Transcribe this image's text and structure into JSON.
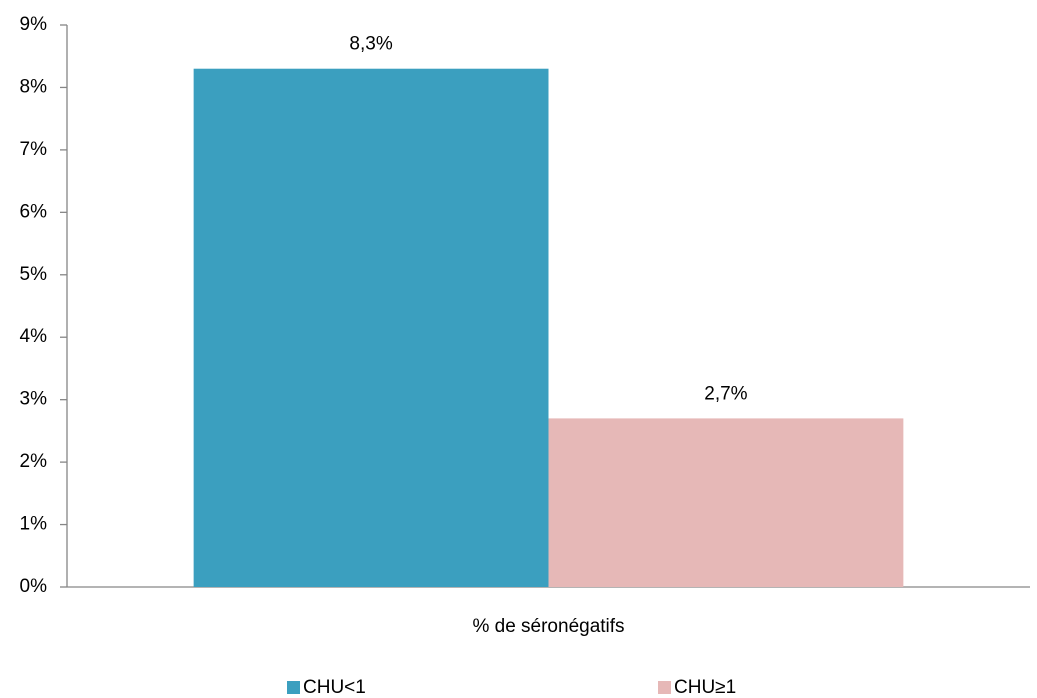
{
  "chart_data": {
    "type": "bar",
    "categories": [
      "% de séronégatifs"
    ],
    "series": [
      {
        "name": "CHU<1",
        "color": "#3b9fbf",
        "values": [
          8.3
        ],
        "value_labels": [
          "8,3%"
        ]
      },
      {
        "name": "CHU≥1",
        "color": "#e6b8b7",
        "values": [
          2.7
        ],
        "value_labels": [
          "2,7%"
        ]
      }
    ],
    "ylim": [
      0,
      9
    ],
    "yticks": [
      {
        "value": 0,
        "label": "0%"
      },
      {
        "value": 1,
        "label": "1%"
      },
      {
        "value": 2,
        "label": "2%"
      },
      {
        "value": 3,
        "label": "3%"
      },
      {
        "value": 4,
        "label": "4%"
      },
      {
        "value": 5,
        "label": "5%"
      },
      {
        "value": 6,
        "label": "6%"
      },
      {
        "value": 7,
        "label": "7%"
      },
      {
        "value": 8,
        "label": "8%"
      },
      {
        "value": 9,
        "label": "9%"
      }
    ],
    "grid": false,
    "legend": "bottom"
  }
}
